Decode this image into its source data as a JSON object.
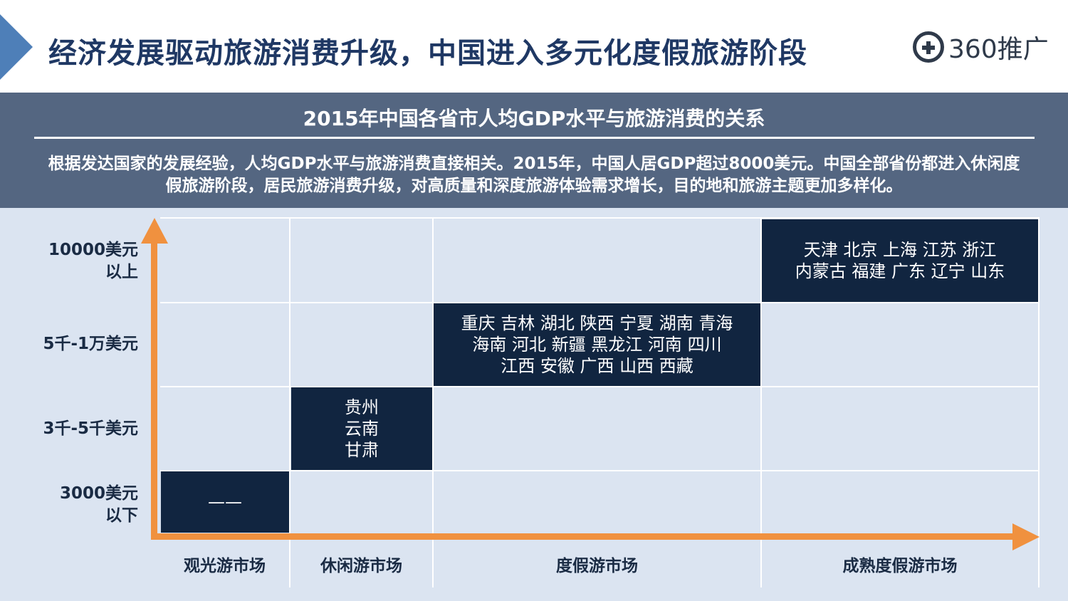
{
  "header": {
    "title": "经济发展驱动旅游消费升级，中国进入多元化度假旅游阶段",
    "logo_text": "360推广"
  },
  "band": {
    "title": "2015年中国各省市人均GDP水平与旅游消费的关系",
    "description": "根据发达国家的发展经验，人均GDP水平与旅游消费直接相关。2015年，中国人居GDP超过8000美元。中国全部省份都进入休闲度假旅游阶段，居民旅游消费升级，对高质量和深度旅游体验需求增长，目的地和旅游主题更加多样化。"
  },
  "matrix": {
    "y_labels": [
      "10000美元\n以上",
      "5千-1万美元",
      "3千-5千美元",
      "3000美元\n以下"
    ],
    "x_labels": [
      "观光游市场",
      "休闲游市场",
      "度假游市场",
      "成熟度假游市场"
    ],
    "cells": {
      "sightseeing_low": "——",
      "leisure_mid": "贵州\n云南\n甘肃",
      "vacation_upper": "重庆  吉林  湖北  陕西  宁夏  湖南  青海\n海南  河北  新疆  黑龙江  河南  四川\n江西  安徽  广西  山西  西藏",
      "mature_high": "天津  北京 上海  江苏  浙江\n内蒙古  福建  广东  辽宁  山东"
    }
  },
  "colors": {
    "accent_orange": "#f0913f",
    "cell_navy": "#112540",
    "band_slate": "#546681",
    "title_navy": "#1f3864"
  },
  "icons": {
    "logo_mark": "plus-in-circle-icon",
    "header_marker": "chevron-right-icon",
    "axis_arrows": [
      "arrow-up-icon",
      "arrow-right-icon"
    ]
  }
}
